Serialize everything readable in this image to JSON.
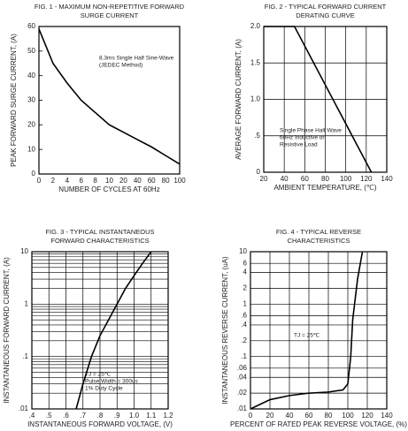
{
  "chart_data": [
    {
      "type": "line",
      "title": [
        "FIG. 1 - MAXIMUM NON-REPETITIVE FORWARD",
        "SURGE CURRENT"
      ],
      "xlabel": "NUMBER OF CYCLES AT 60Hz",
      "ylabel": "PEAK FORWARD SURGE CURRENT, (A)",
      "categories": [
        "0",
        "2",
        "4",
        "6",
        "8",
        "10",
        "20",
        "40",
        "60",
        "80",
        "100"
      ],
      "values": [
        59,
        45,
        37,
        30,
        25,
        20,
        17,
        14,
        11,
        7.5,
        4
      ],
      "color": "#000000",
      "ylim": [
        0,
        60
      ],
      "yticks": [
        0,
        10,
        20,
        30,
        40,
        50,
        60
      ],
      "grid": false,
      "annotation": [
        "8.3ms Single Half Sine-Wave",
        "(JEDEC Method)"
      ]
    },
    {
      "type": "line",
      "title": [
        "FIG. 2 - TYPICAL FORWARD CURRENT",
        "DERATING CURVE"
      ],
      "xlabel": "AMBIENT TEMPERATURE, (℃)",
      "ylabel": "AVERAGE FORWARD CURRENT, (A)",
      "x": [
        20,
        50,
        125
      ],
      "values": [
        2,
        2,
        0
      ],
      "color": "#000000",
      "xlim": [
        20,
        140
      ],
      "xticks": [
        20,
        40,
        60,
        80,
        100,
        120,
        140
      ],
      "ylim": [
        0,
        2
      ],
      "yticks": [
        0,
        {
          "value": 0.5,
          "label": ".5"
        },
        {
          "value": 1,
          "label": "1.0"
        },
        1.5,
        {
          "value": 2,
          "label": "2.0"
        }
      ],
      "grid": true,
      "annotation": [
        "Single Phase Half Wave",
        "60Hz Inductive or",
        "Resistive Load"
      ]
    },
    {
      "type": "line",
      "title": [
        "FIG. 3 - TYPICAL INSTANTANEOUS",
        "FORWARD CHARACTERISTICS"
      ],
      "xlabel": "INSTANTANEOUS FORWARD VOLTAGE, (V)",
      "ylabel": "INSTANTANEOUS FORWARD CURRENT, (A)",
      "x": [
        0.66,
        0.7,
        0.75,
        0.8,
        0.85,
        0.9,
        0.95,
        1.0,
        1.05,
        1.1
      ],
      "values": [
        0.01,
        0.03,
        0.1,
        0.25,
        0.5,
        1,
        2,
        3.5,
        6,
        10
      ],
      "color": "#000000",
      "xlim": [
        0.4,
        1.2
      ],
      "xticks": [
        {
          "value": 0.4,
          "label": ".4"
        },
        {
          "value": 0.5,
          "label": ".5"
        },
        {
          "value": 0.6,
          "label": ".6"
        },
        {
          "value": 0.7,
          "label": ".7"
        },
        {
          "value": 0.8,
          "label": ".8"
        },
        {
          "value": 0.9,
          "label": ".9"
        },
        {
          "value": 1,
          "label": "1.0"
        },
        1.1,
        1.2
      ],
      "ylim": [
        0.01,
        10
      ],
      "log_y": true,
      "yticks": [
        {
          "value": 0.01,
          "label": ".01"
        },
        {
          "value": 0.1,
          "label": ".1"
        },
        1,
        10
      ],
      "grid": true,
      "minor_grid": true,
      "annotation": [
        "TJ = 25℃",
        "Pulse Width = 300us",
        "1% Duty Cycle"
      ]
    },
    {
      "type": "line",
      "title": [
        "FIG. 4 - TYPICAL REVERSE",
        "CHARACTERISTICS"
      ],
      "xlabel": "PERCENT OF RATED PEAK REVERSE VOLTAGE, (%)",
      "ylabel": "INSTANTANEOUS REVERSE CURRENT, (uA)",
      "x": [
        0,
        20,
        40,
        60,
        80,
        95,
        100,
        103,
        105,
        110,
        115
      ],
      "values": [
        0.01,
        0.015,
        0.018,
        0.02,
        0.021,
        0.023,
        0.03,
        0.1,
        0.5,
        3,
        10
      ],
      "color": "#000000",
      "xlim": [
        0,
        140
      ],
      "xticks": [
        0,
        20,
        40,
        60,
        80,
        100,
        120,
        140
      ],
      "ylim": [
        0.01,
        10
      ],
      "log_y": true,
      "yticks": [
        {
          "value": 0.01,
          "label": ".01"
        },
        {
          "value": 0.02,
          "label": ".02"
        },
        {
          "value": 0.04,
          "label": ".04"
        },
        {
          "value": 0.06,
          "label": ".06"
        },
        {
          "value": 0.1,
          "label": ".1"
        },
        {
          "value": 0.2,
          "label": ".2"
        },
        {
          "value": 0.4,
          "label": ".4"
        },
        {
          "value": 0.6,
          "label": ".6"
        },
        1,
        2,
        4,
        6,
        10
      ],
      "grid": true,
      "annotation": [
        "TJ = 25℃"
      ]
    }
  ]
}
